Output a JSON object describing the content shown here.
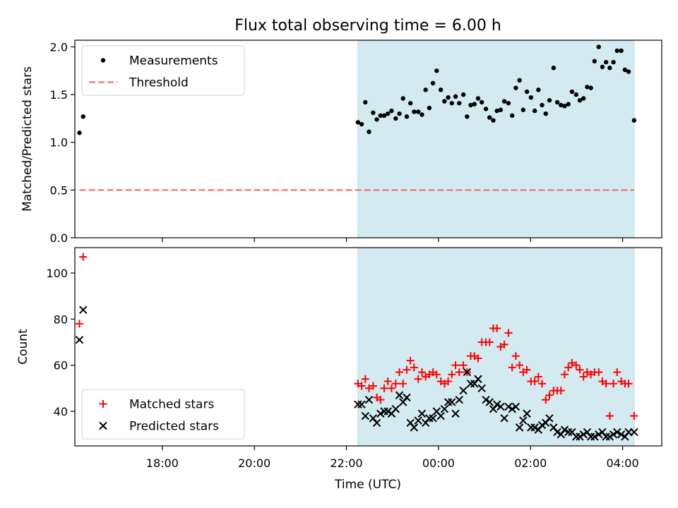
{
  "title": "Flux total observing time = 6.00 h",
  "colors": {
    "shade": "#d3eaf0",
    "shade_edge": "#b9dbe4",
    "threshold": "#f08080",
    "matched": "#ff0000",
    "predicted": "#000000",
    "measurement": "#000000"
  },
  "chart_data": [
    {
      "type": "scatter",
      "x_unit": "hours since 17:00 UTC (x tick labels are wall-clock times)",
      "ylabel": "Matched/Predicted stars",
      "ylim": [
        0,
        2.07
      ],
      "yticks": [
        "0.0",
        "0.5",
        "1.0",
        "1.5",
        "2.0"
      ],
      "xlim": [
        -0.9,
        11.85
      ],
      "shaded_interval_x": [
        5.25,
        11.25
      ],
      "legend": {
        "placement": "top-left",
        "entries": [
          "Measurements",
          "Threshold"
        ]
      },
      "threshold": {
        "name": "Threshold",
        "y": 0.5,
        "x": [
          -0.8,
          11.25
        ]
      },
      "series": [
        {
          "name": "Measurements",
          "x": [
            -0.8,
            -0.72,
            5.25,
            5.33,
            5.41,
            5.49,
            5.58,
            5.66,
            5.74,
            5.82,
            5.9,
            5.98,
            6.07,
            6.15,
            6.23,
            6.31,
            6.39,
            6.47,
            6.56,
            6.64,
            6.72,
            6.8,
            6.88,
            6.96,
            7.05,
            7.13,
            7.21,
            7.29,
            7.37,
            7.45,
            7.54,
            7.62,
            7.7,
            7.78,
            7.86,
            7.94,
            8.03,
            8.11,
            8.19,
            8.27,
            8.35,
            8.43,
            8.52,
            8.6,
            8.68,
            8.76,
            8.84,
            8.92,
            9.01,
            9.09,
            9.17,
            9.25,
            9.33,
            9.41,
            9.5,
            9.58,
            9.66,
            9.74,
            9.82,
            9.9,
            9.99,
            10.07,
            10.15,
            10.23,
            10.31,
            10.39,
            10.48,
            10.56,
            10.64,
            10.72,
            10.8,
            10.88,
            10.97,
            11.05,
            11.13,
            11.25
          ],
          "y": [
            1.1,
            1.27,
            1.21,
            1.19,
            1.42,
            1.11,
            1.31,
            1.24,
            1.28,
            1.28,
            1.3,
            1.33,
            1.25,
            1.3,
            1.46,
            1.27,
            1.41,
            1.32,
            1.32,
            1.29,
            1.55,
            1.36,
            1.62,
            1.75,
            1.55,
            1.43,
            1.47,
            1.41,
            1.48,
            1.41,
            1.5,
            1.27,
            1.39,
            1.4,
            1.46,
            1.42,
            1.35,
            1.26,
            1.23,
            1.33,
            1.34,
            1.43,
            1.41,
            1.28,
            1.57,
            1.65,
            1.34,
            1.53,
            1.47,
            1.33,
            1.55,
            1.39,
            1.3,
            1.44,
            1.78,
            1.42,
            1.39,
            1.38,
            1.4,
            1.53,
            1.5,
            1.44,
            1.46,
            1.58,
            1.57,
            1.85,
            2.0,
            1.79,
            1.84,
            1.78,
            1.84,
            1.96,
            1.96,
            1.76,
            1.74,
            1.23
          ]
        }
      ]
    },
    {
      "type": "scatter",
      "x_unit": "hours since 17:00 UTC (x tick labels are wall-clock times)",
      "xlabel": "Time (UTC)",
      "ylabel": "Count",
      "ylim": [
        25,
        111
      ],
      "yticks": [
        "40",
        "60",
        "80",
        "100"
      ],
      "xticks": [
        "18:00",
        "20:00",
        "22:00",
        "00:00",
        "02:00",
        "04:00"
      ],
      "xlim": [
        -0.9,
        11.85
      ],
      "shaded_interval_x": [
        5.25,
        11.25
      ],
      "legend": {
        "placement": "bottom-left",
        "entries": [
          "Matched stars",
          "Predicted stars"
        ]
      },
      "series": [
        {
          "name": "Matched stars",
          "marker": "plus",
          "x": [
            -0.8,
            -0.72,
            5.25,
            5.33,
            5.41,
            5.49,
            5.58,
            5.66,
            5.74,
            5.82,
            5.9,
            5.98,
            6.07,
            6.15,
            6.23,
            6.31,
            6.39,
            6.47,
            6.56,
            6.64,
            6.72,
            6.8,
            6.88,
            6.96,
            7.05,
            7.13,
            7.21,
            7.29,
            7.37,
            7.45,
            7.54,
            7.62,
            7.7,
            7.78,
            7.86,
            7.94,
            8.03,
            8.11,
            8.19,
            8.27,
            8.35,
            8.43,
            8.52,
            8.6,
            8.68,
            8.76,
            8.84,
            8.92,
            9.01,
            9.09,
            9.17,
            9.25,
            9.33,
            9.41,
            9.5,
            9.58,
            9.66,
            9.74,
            9.82,
            9.9,
            9.99,
            10.07,
            10.15,
            10.23,
            10.31,
            10.39,
            10.48,
            10.56,
            10.64,
            10.72,
            10.8,
            10.88,
            10.97,
            11.05,
            11.13,
            11.25
          ],
          "y": [
            78,
            107,
            52,
            51,
            54,
            50,
            51,
            46,
            45,
            50,
            53,
            50,
            52,
            57,
            52,
            58,
            62,
            59,
            54,
            57,
            55,
            56,
            57,
            56,
            53,
            52,
            53,
            56,
            60,
            57,
            60,
            57,
            64,
            64,
            63,
            70,
            70,
            70,
            76,
            76,
            68,
            69,
            74,
            59,
            64,
            60,
            57,
            58,
            53,
            53,
            55,
            52,
            45,
            47,
            49,
            49,
            49,
            56,
            59,
            61,
            60,
            58,
            55,
            57,
            56,
            57,
            57,
            53,
            52,
            38,
            52,
            57,
            53,
            52,
            52,
            38
          ]
        },
        {
          "name": "Predicted stars",
          "marker": "x",
          "x": [
            -0.8,
            -0.72,
            5.25,
            5.33,
            5.41,
            5.49,
            5.58,
            5.66,
            5.74,
            5.82,
            5.9,
            5.98,
            6.07,
            6.15,
            6.23,
            6.31,
            6.39,
            6.47,
            6.56,
            6.64,
            6.72,
            6.8,
            6.88,
            6.96,
            7.05,
            7.13,
            7.21,
            7.29,
            7.37,
            7.45,
            7.54,
            7.62,
            7.7,
            7.78,
            7.86,
            7.94,
            8.03,
            8.11,
            8.19,
            8.27,
            8.35,
            8.43,
            8.52,
            8.6,
            8.68,
            8.76,
            8.84,
            8.92,
            9.01,
            9.09,
            9.17,
            9.25,
            9.33,
            9.41,
            9.5,
            9.58,
            9.66,
            9.74,
            9.82,
            9.9,
            9.99,
            10.07,
            10.15,
            10.23,
            10.31,
            10.39,
            10.48,
            10.56,
            10.64,
            10.72,
            10.8,
            10.88,
            10.97,
            11.05,
            11.13,
            11.25
          ],
          "y": [
            71,
            84,
            43,
            43,
            38,
            45,
            37,
            35,
            39,
            40,
            40,
            39,
            41,
            47,
            44,
            46,
            35,
            33,
            36,
            39,
            35,
            37,
            37,
            40,
            38,
            41,
            44,
            44,
            39,
            45,
            49,
            57,
            52,
            52,
            54,
            50,
            45,
            44,
            41,
            43,
            42,
            37,
            42,
            41,
            42,
            33,
            36,
            39,
            33,
            33,
            32,
            34,
            35,
            37,
            33,
            31,
            30,
            32,
            31,
            31,
            29,
            29,
            30,
            31,
            29,
            29,
            30,
            31,
            29,
            29,
            30,
            31,
            30,
            29,
            31,
            31
          ]
        }
      ]
    }
  ]
}
